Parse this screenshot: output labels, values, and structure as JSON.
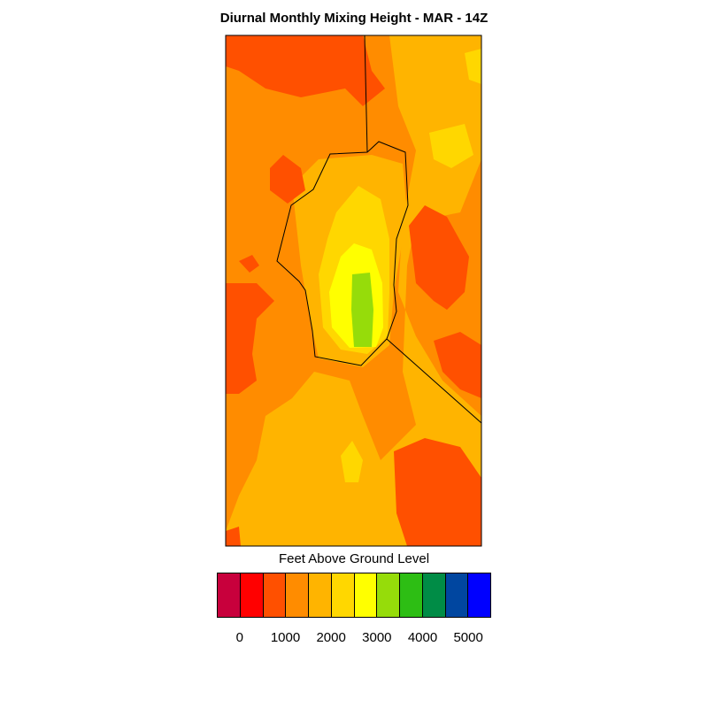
{
  "title": "Diurnal Monthly Mixing Height - MAR - 14Z",
  "legend": {
    "title": "Feet Above Ground Level",
    "colors": [
      "#c8003c",
      "#ff0000",
      "#ff5000",
      "#ff8c00",
      "#ffb400",
      "#ffd700",
      "#ffff00",
      "#96dc0a",
      "#2dbe14",
      "#008c46",
      "#0046a0",
      "#0000ff"
    ],
    "ticks": [
      "0",
      "1000",
      "2000",
      "3000",
      "4000",
      "5000"
    ]
  },
  "chart_data": {
    "type": "heatmap",
    "title": "Diurnal Monthly Mixing Height - MAR - 14Z",
    "colorbar_label": "Feet Above Ground Level",
    "levels": [
      0,
      500,
      1000,
      1500,
      2000,
      2500,
      3000,
      3500,
      4000,
      4500,
      5000
    ],
    "tick_labels": [
      "0",
      "1000",
      "2000",
      "3000",
      "4000",
      "5000"
    ],
    "observed_range": [
      500,
      3500
    ],
    "max_region": "central (inside outlined county)",
    "min_regions": [
      "north",
      "west edge",
      "east",
      "southeast"
    ]
  }
}
